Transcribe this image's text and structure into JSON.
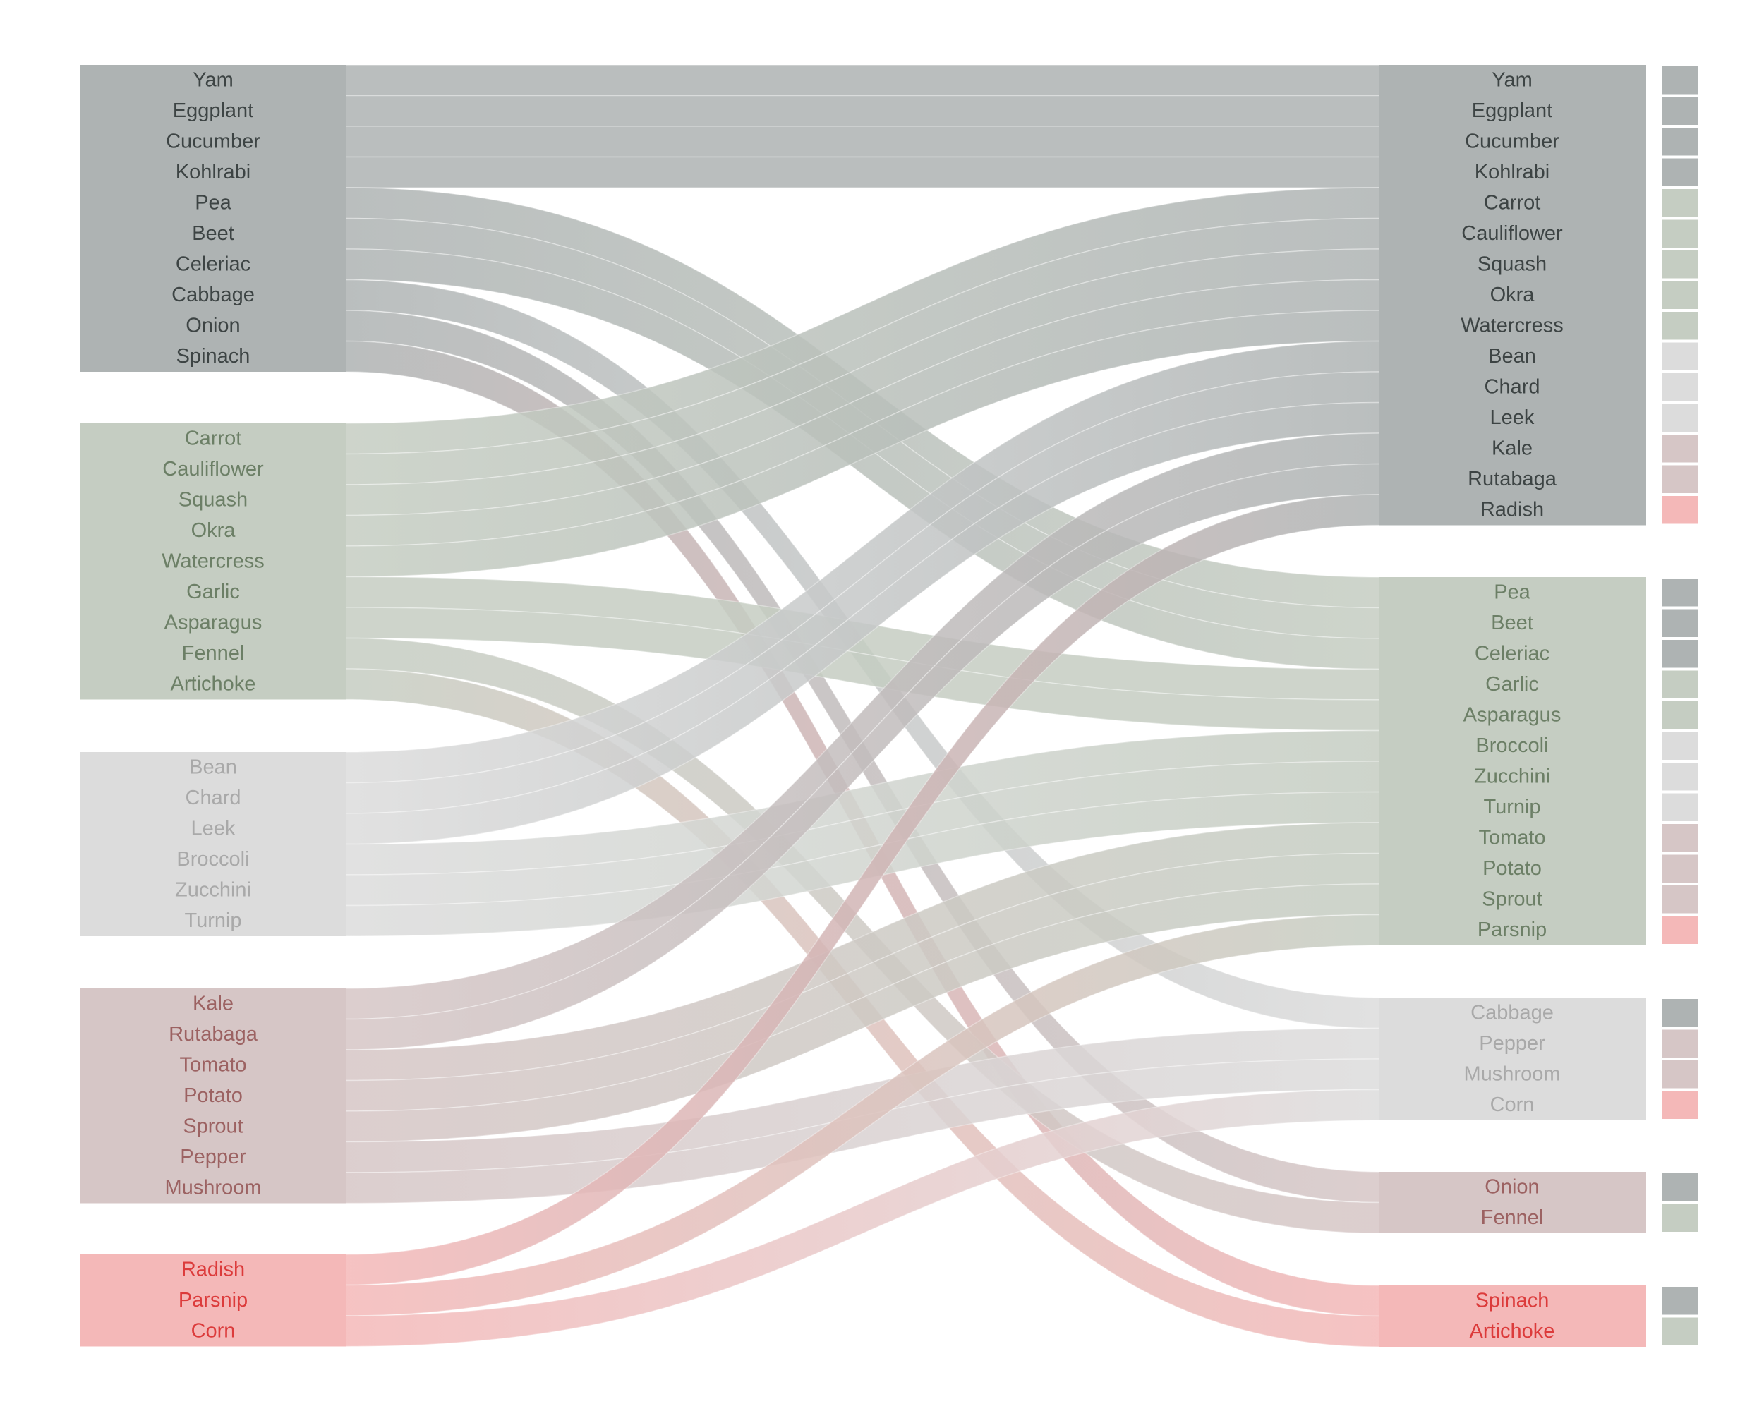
{
  "groups": [
    {
      "id": "g1",
      "fill": "#aeb3b3",
      "text": "#3d4444"
    },
    {
      "id": "g2",
      "fill": "#c5cdc2",
      "text": "#6c7f66"
    },
    {
      "id": "g3",
      "fill": "#dcdcdc",
      "text": "#a9a9a9"
    },
    {
      "id": "g4",
      "fill": "#d6c6c6",
      "text": "#9c6262"
    },
    {
      "id": "g5",
      "fill": "#f4b8b8",
      "text": "#dc3b3b"
    }
  ],
  "left_blocks": [
    {
      "group": "g1",
      "items": [
        "Yam",
        "Eggplant",
        "Cucumber",
        "Kohlrabi",
        "Pea",
        "Beet",
        "Celeriac",
        "Cabbage",
        "Onion",
        "Spinach"
      ]
    },
    {
      "group": "g2",
      "items": [
        "Carrot",
        "Cauliflower",
        "Squash",
        "Okra",
        "Watercress",
        "Garlic",
        "Asparagus",
        "Fennel",
        "Artichoke"
      ]
    },
    {
      "group": "g3",
      "items": [
        "Bean",
        "Chard",
        "Leek",
        "Broccoli",
        "Zucchini",
        "Turnip"
      ]
    },
    {
      "group": "g4",
      "items": [
        "Kale",
        "Rutabaga",
        "Tomato",
        "Potato",
        "Sprout",
        "Pepper",
        "Mushroom"
      ]
    },
    {
      "group": "g5",
      "items": [
        "Radish",
        "Parsnip",
        "Corn"
      ]
    }
  ],
  "right_blocks": [
    {
      "group": "g1",
      "items": [
        "Yam",
        "Eggplant",
        "Cucumber",
        "Kohlrabi",
        "Carrot",
        "Cauliflower",
        "Squash",
        "Okra",
        "Watercress",
        "Bean",
        "Chard",
        "Leek",
        "Kale",
        "Rutabaga",
        "Radish"
      ]
    },
    {
      "group": "g2",
      "items": [
        "Pea",
        "Beet",
        "Celeriac",
        "Garlic",
        "Asparagus",
        "Broccoli",
        "Zucchini",
        "Turnip",
        "Tomato",
        "Potato",
        "Sprout",
        "Parsnip"
      ]
    },
    {
      "group": "g3",
      "items": [
        "Cabbage",
        "Pepper",
        "Mushroom",
        "Corn"
      ]
    },
    {
      "group": "g4",
      "items": [
        "Onion",
        "Fennel"
      ]
    },
    {
      "group": "g5",
      "items": [
        "Spinach",
        "Artichoke"
      ]
    }
  ]
}
